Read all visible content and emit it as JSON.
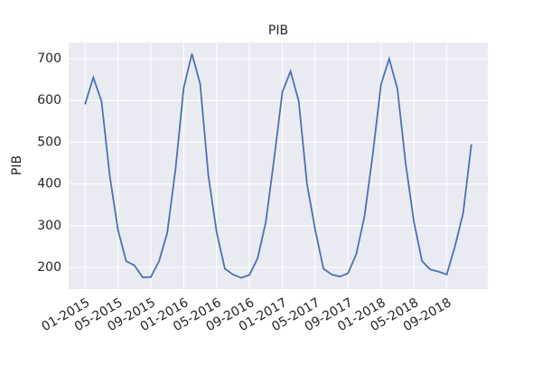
{
  "chart_data": {
    "type": "line",
    "title": "PIB",
    "ylabel": "PIB",
    "x": [
      "01-2015",
      "02-2015",
      "03-2015",
      "04-2015",
      "05-2015",
      "06-2015",
      "07-2015",
      "08-2015",
      "09-2015",
      "10-2015",
      "11-2015",
      "12-2015",
      "01-2016",
      "02-2016",
      "03-2016",
      "04-2016",
      "05-2016",
      "06-2016",
      "07-2016",
      "08-2016",
      "09-2016",
      "10-2016",
      "11-2016",
      "12-2016",
      "01-2017",
      "02-2017",
      "03-2017",
      "04-2017",
      "05-2017",
      "06-2017",
      "07-2017",
      "08-2017",
      "09-2017",
      "10-2017",
      "11-2017",
      "12-2017",
      "01-2018",
      "02-2018",
      "03-2018",
      "04-2018",
      "05-2018",
      "06-2018",
      "07-2018",
      "08-2018",
      "09-2018",
      "10-2018",
      "11-2018",
      "12-2018"
    ],
    "series": [
      {
        "name": "PIB",
        "color": "#4c72b0",
        "values": [
          591,
          655,
          598,
          420,
          290,
          215,
          205,
          176,
          177,
          215,
          283,
          435,
          630,
          712,
          640,
          420,
          285,
          197,
          183,
          175,
          182,
          222,
          310,
          460,
          620,
          670,
          598,
          400,
          290,
          197,
          183,
          178,
          186,
          232,
          323,
          470,
          638,
          700,
          628,
          450,
          310,
          215,
          195,
          190,
          183,
          250,
          330,
          495
        ]
      }
    ],
    "xlim": [
      "11-2014",
      "02-2019"
    ],
    "xticks": [
      "01-2015",
      "05-2015",
      "09-2015",
      "01-2016",
      "05-2016",
      "09-2016",
      "01-2017",
      "05-2017",
      "09-2017",
      "01-2018",
      "05-2018",
      "09-2018"
    ],
    "ylim": [
      148,
      739
    ],
    "yticks": [
      200,
      300,
      400,
      500,
      600,
      700
    ],
    "grid": true
  }
}
